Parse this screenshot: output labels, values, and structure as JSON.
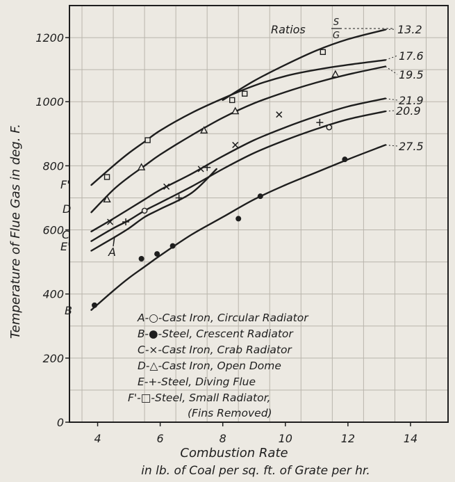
{
  "chart_data": {
    "type": "line",
    "xlabel": "Combustion Rate",
    "xlabel2": "in lb. of Coal per sq. ft. of Grate per hr.",
    "ylabel": "Temperature of Flue Gas in deg. F.",
    "xlim": [
      3.1,
      15.2
    ],
    "ylim": [
      0,
      1300
    ],
    "x_ticks": [
      4,
      6,
      8,
      10,
      12,
      14
    ],
    "y_ticks": [
      0,
      200,
      400,
      600,
      800,
      1000,
      1200
    ],
    "grid": true,
    "ratios_header": {
      "prefix": "Ratios",
      "num": "S",
      "den": "G"
    },
    "legend": [
      "A-○-Cast Iron, Circular Radiator",
      "B-●-Steel, Crescent Radiator",
      "C-×-Cast Iron, Crab Radiator",
      "D-△-Cast Iron, Open Dome",
      "E-+-Steel, Diving Flue",
      "F'-□-Steel, Small Radiator,",
      "(Fins Removed)"
    ],
    "series": [
      {
        "name": "A",
        "curve_label": "A",
        "ratio": "20.9",
        "marker": "circle-open",
        "x": [
          3.8,
          4.5,
          5.0,
          5.5,
          6.0,
          7.0,
          8.0,
          9.0,
          10.0,
          11.0,
          12.0,
          13.2
        ],
        "y": [
          565,
          605,
          630,
          660,
          685,
          735,
          790,
          840,
          880,
          915,
          945,
          970
        ],
        "points": [
          [
            5.5,
            660
          ],
          [
            11.4,
            920
          ]
        ]
      },
      {
        "name": "B",
        "curve_label": "B",
        "ratio": "27.5",
        "marker": "circle-filled",
        "x": [
          3.8,
          4.5,
          5.0,
          5.5,
          6.0,
          7.0,
          8.0,
          9.0,
          10.0,
          11.0,
          12.0,
          13.2
        ],
        "y": [
          350,
          410,
          450,
          485,
          520,
          585,
          640,
          695,
          740,
          780,
          820,
          865
        ],
        "points": [
          [
            3.9,
            365
          ],
          [
            5.4,
            510
          ],
          [
            5.9,
            525
          ],
          [
            6.4,
            550
          ],
          [
            8.5,
            635
          ],
          [
            9.2,
            705
          ],
          [
            11.9,
            820
          ]
        ]
      },
      {
        "name": "C",
        "curve_label": "C",
        "ratio": "21.9",
        "marker": "cross",
        "x": [
          3.8,
          4.5,
          5.0,
          5.5,
          6.0,
          7.0,
          8.0,
          9.0,
          10.0,
          11.0,
          12.0,
          13.2
        ],
        "y": [
          595,
          635,
          665,
          695,
          725,
          775,
          830,
          880,
          920,
          955,
          985,
          1010
        ],
        "points": [
          [
            4.4,
            625
          ],
          [
            6.2,
            735
          ],
          [
            7.3,
            790
          ],
          [
            8.4,
            865
          ],
          [
            9.8,
            960
          ]
        ]
      },
      {
        "name": "D",
        "curve_label": "D",
        "ratio": "19.5",
        "marker": "triangle-open",
        "x": [
          3.8,
          4.5,
          5.0,
          5.5,
          6.0,
          7.0,
          8.0,
          9.0,
          10.0,
          11.0,
          12.0,
          13.2
        ],
        "y": [
          655,
          725,
          765,
          800,
          835,
          895,
          950,
          995,
          1030,
          1060,
          1085,
          1110
        ],
        "points": [
          [
            4.3,
            695
          ],
          [
            5.4,
            795
          ],
          [
            7.4,
            910
          ],
          [
            8.4,
            970
          ],
          [
            11.6,
            1085
          ]
        ]
      },
      {
        "name": "E",
        "curve_label": "E'",
        "ratio": "",
        "marker": "plus",
        "x": [
          3.8,
          4.5,
          5.0,
          5.5,
          6.0,
          7.0,
          7.8
        ],
        "y": [
          535,
          575,
          605,
          640,
          665,
          715,
          790
        ],
        "points": [
          [
            4.9,
            625
          ],
          [
            6.6,
            700
          ],
          [
            7.5,
            795
          ],
          [
            11.1,
            935
          ]
        ]
      },
      {
        "name": "F'",
        "curve_label": "F'",
        "ratio": "17.6",
        "marker": "square-open",
        "x": [
          3.8,
          4.5,
          5.0,
          5.5,
          6.0,
          7.0,
          8.0,
          9.0,
          10.0,
          11.0,
          12.0,
          13.2
        ],
        "y": [
          740,
          800,
          840,
          875,
          910,
          965,
          1010,
          1050,
          1080,
          1100,
          1115,
          1130
        ],
        "points": [
          [
            4.3,
            765
          ],
          [
            5.6,
            880
          ],
          [
            8.3,
            1005
          ],
          [
            8.7,
            1025
          ],
          [
            11.2,
            1155
          ]
        ]
      },
      {
        "name": "top",
        "curve_label": "",
        "ratio": "13.2",
        "marker": "none",
        "x": [
          8.0,
          9.0,
          10.0,
          11.0,
          12.0,
          13.2
        ],
        "y": [
          1005,
          1065,
          1115,
          1160,
          1195,
          1225
        ],
        "points": []
      }
    ]
  }
}
